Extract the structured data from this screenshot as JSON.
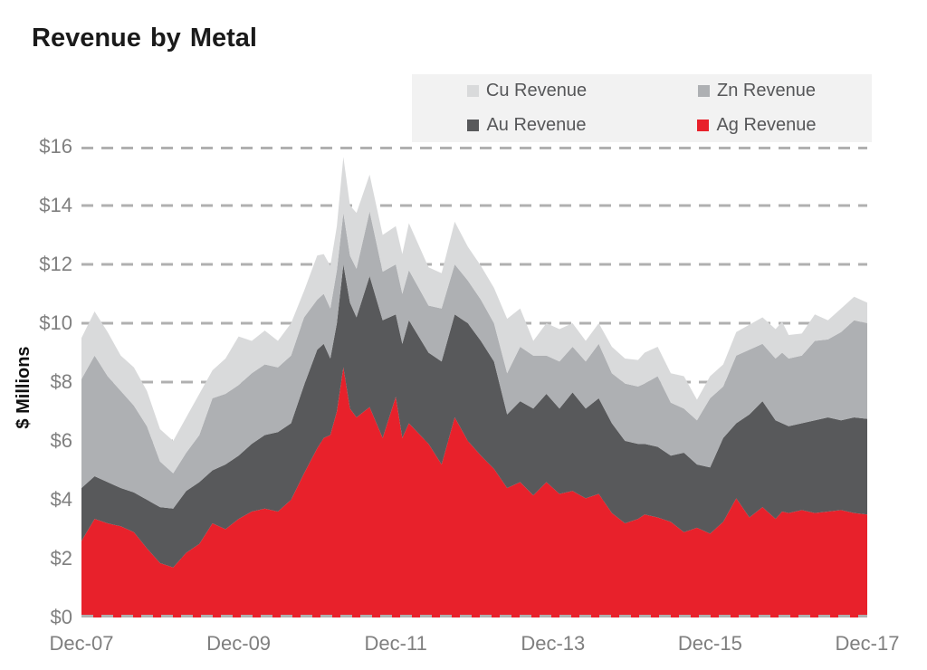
{
  "title": "Revenue by Metal",
  "y_axis_title": "$ Millions",
  "legend": {
    "items": [
      {
        "label": "Cu Revenue",
        "color": "#d9dadb"
      },
      {
        "label": "Zn Revenue",
        "color": "#aeb0b3"
      },
      {
        "label": "Au Revenue",
        "color": "#58595b"
      },
      {
        "label": "Ag Revenue",
        "color": "#e8212b"
      }
    ]
  },
  "colors": {
    "grid": "#b0b0b0",
    "tick_text": "#7f7f7f",
    "legend_bg": "#f2f2f2"
  },
  "chart_data": {
    "type": "area",
    "stacked": true,
    "title": "Revenue by Metal",
    "xlabel": "",
    "ylabel": "$ Millions",
    "ylim": [
      0,
      16
    ],
    "grid": "dashed horizontal",
    "legend_position": "top-right box",
    "x_unit": "months since Dec-2007",
    "x_range_labels": [
      "Dec-07",
      "Dec-17"
    ],
    "y_ticks": [
      {
        "value": 16,
        "label": "$16"
      },
      {
        "value": 14,
        "label": "$14"
      },
      {
        "value": 12,
        "label": "$12"
      },
      {
        "value": 10,
        "label": "$10"
      },
      {
        "value": 8,
        "label": "$8"
      },
      {
        "value": 6,
        "label": "$6"
      },
      {
        "value": 4,
        "label": "$4"
      },
      {
        "value": 2,
        "label": "$2"
      },
      {
        "value": 0,
        "label": "$0"
      }
    ],
    "x_ticks": [
      {
        "m": 0,
        "label": "Dec-07"
      },
      {
        "m": 24,
        "label": "Dec-09"
      },
      {
        "m": 48,
        "label": "Dec-11"
      },
      {
        "m": 72,
        "label": "Dec-13"
      },
      {
        "m": 96,
        "label": "Dec-15"
      },
      {
        "m": 120,
        "label": "Dec-17"
      }
    ],
    "x_months": [
      0,
      2,
      4,
      6,
      8,
      10,
      12,
      14,
      16,
      18,
      20,
      22,
      24,
      26,
      28,
      30,
      32,
      34,
      36,
      37,
      38,
      39,
      40,
      41,
      42,
      44,
      46,
      48,
      49,
      50,
      53,
      55,
      57,
      59,
      61,
      63,
      65,
      67,
      69,
      71,
      73,
      75,
      77,
      79,
      81,
      83,
      85,
      86,
      88,
      90,
      92,
      94,
      96,
      98,
      100,
      102,
      104,
      106,
      107,
      108,
      110,
      112,
      114,
      116,
      118,
      120
    ],
    "series": [
      {
        "name": "Ag Revenue",
        "color": "#e8212b",
        "values": [
          2.6,
          3.35,
          3.2,
          3.1,
          2.9,
          2.35,
          1.85,
          1.7,
          2.2,
          2.5,
          3.2,
          3.0,
          3.35,
          3.6,
          3.7,
          3.6,
          4.0,
          4.9,
          5.75,
          6.1,
          6.2,
          7.0,
          8.5,
          7.1,
          6.8,
          7.15,
          6.1,
          7.5,
          6.1,
          6.6,
          5.9,
          5.2,
          6.8,
          6.0,
          5.5,
          5.05,
          4.4,
          4.6,
          4.15,
          4.6,
          4.2,
          4.3,
          4.05,
          4.2,
          3.55,
          3.2,
          3.35,
          3.5,
          3.4,
          3.25,
          2.9,
          3.05,
          2.85,
          3.25,
          4.05,
          3.4,
          3.75,
          3.35,
          3.6,
          3.55,
          3.65,
          3.55,
          3.6,
          3.65,
          3.55,
          3.5
        ]
      },
      {
        "name": "Au Revenue",
        "color": "#58595b",
        "values": [
          1.8,
          1.45,
          1.4,
          1.3,
          1.35,
          1.65,
          1.9,
          2.0,
          2.1,
          2.1,
          1.8,
          2.2,
          2.15,
          2.3,
          2.5,
          2.7,
          2.6,
          3.0,
          3.35,
          3.2,
          2.6,
          3.0,
          3.5,
          3.6,
          3.4,
          4.45,
          4.0,
          2.8,
          3.2,
          3.5,
          3.1,
          3.5,
          3.5,
          4.0,
          3.9,
          3.65,
          2.5,
          2.75,
          2.95,
          3.0,
          2.9,
          3.35,
          3.05,
          3.25,
          3.05,
          2.8,
          2.55,
          2.4,
          2.4,
          2.25,
          2.7,
          2.15,
          2.25,
          2.85,
          2.55,
          3.5,
          3.6,
          3.35,
          3.0,
          2.95,
          2.95,
          3.15,
          3.2,
          3.05,
          3.25,
          3.25
        ]
      },
      {
        "name": "Zn Revenue",
        "color": "#aeb0b3",
        "values": [
          3.7,
          4.1,
          3.6,
          3.3,
          2.95,
          2.5,
          1.55,
          1.2,
          1.3,
          1.6,
          2.45,
          2.4,
          2.4,
          2.4,
          2.4,
          2.2,
          2.3,
          2.3,
          1.7,
          1.7,
          1.7,
          1.8,
          1.75,
          1.6,
          1.65,
          2.2,
          1.65,
          1.7,
          1.7,
          1.7,
          1.6,
          1.8,
          1.7,
          1.45,
          1.4,
          1.3,
          1.4,
          1.85,
          1.8,
          1.3,
          1.6,
          1.55,
          1.6,
          1.85,
          1.7,
          1.95,
          1.95,
          2.05,
          2.4,
          1.8,
          1.5,
          1.5,
          2.35,
          1.75,
          2.3,
          2.2,
          1.95,
          2.1,
          2.4,
          2.3,
          2.3,
          2.7,
          2.65,
          3.0,
          3.3,
          3.25
        ]
      },
      {
        "name": "Cu Revenue",
        "color": "#d9dadb",
        "values": [
          1.4,
          1.5,
          1.5,
          1.2,
          1.3,
          1.2,
          1.1,
          1.1,
          1.2,
          1.4,
          0.95,
          1.2,
          1.65,
          1.1,
          1.15,
          0.9,
          1.1,
          0.9,
          1.5,
          1.35,
          1.45,
          1.5,
          1.9,
          1.7,
          1.9,
          1.25,
          1.25,
          1.3,
          1.35,
          1.6,
          1.3,
          1.2,
          1.45,
          1.15,
          1.15,
          1.2,
          1.85,
          1.3,
          0.5,
          1.1,
          1.1,
          0.8,
          0.7,
          0.7,
          0.9,
          0.85,
          0.9,
          1.05,
          1.0,
          1.0,
          1.1,
          0.7,
          0.75,
          0.75,
          0.8,
          0.85,
          0.9,
          1.0,
          1.05,
          0.8,
          0.75,
          0.9,
          0.65,
          0.8,
          0.8,
          0.7
        ]
      }
    ]
  }
}
